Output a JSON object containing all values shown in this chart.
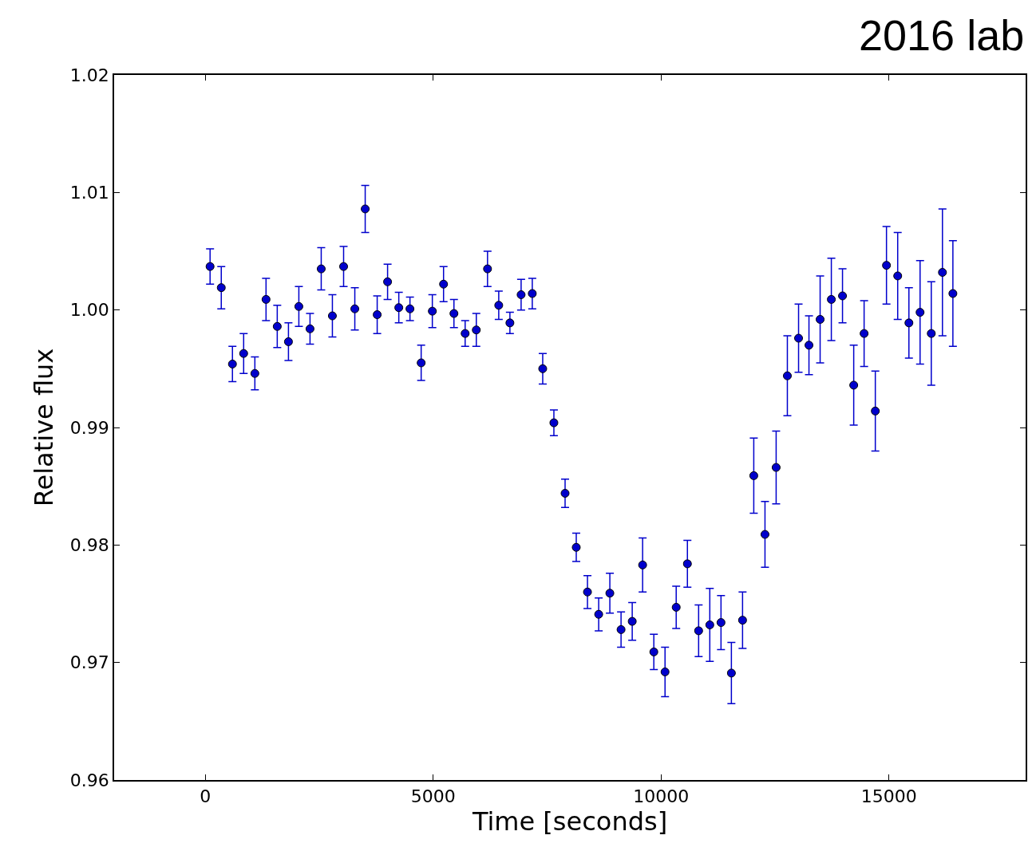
{
  "chart_data": {
    "type": "scatter",
    "xlabel": "Time [seconds]",
    "ylabel": "Relative flux",
    "annotations": [
      "2016 lab"
    ],
    "x": [
      105,
      351,
      596,
      842,
      1088,
      1333,
      1579,
      1825,
      2053,
      2298,
      2544,
      2789,
      3035,
      3281,
      3509,
      3772,
      4000,
      4246,
      4491,
      4737,
      4982,
      5228,
      5456,
      5702,
      5947,
      6193,
      6439,
      6684,
      6930,
      7175,
      7404,
      7649,
      7895,
      8140,
      8386,
      8632,
      8877,
      9123,
      9368,
      9596,
      9842,
      10088,
      10333,
      10579,
      10825,
      11070,
      11316,
      11544,
      11789,
      12035,
      12281,
      12526,
      12772,
      13018,
      13246,
      13491,
      13737,
      13982,
      14228,
      14456,
      14702,
      14947,
      15193,
      15439,
      15684,
      15930,
      16175,
      16404
    ],
    "series": [
      {
        "color": "#0000cc",
        "values": [
          1.0037,
          1.0019,
          0.9954,
          0.9963,
          0.9946,
          1.0009,
          0.9986,
          0.9973,
          1.0003,
          0.9984,
          1.0035,
          0.9995,
          1.0037,
          1.0001,
          1.0086,
          0.9996,
          1.0024,
          1.0002,
          1.0001,
          0.9955,
          0.9999,
          1.0022,
          0.9997,
          0.998,
          0.9983,
          1.0035,
          1.0004,
          0.9989,
          1.0013,
          1.0014,
          0.995,
          0.9904,
          0.9844,
          0.9798,
          0.976,
          0.9741,
          0.9759,
          0.9728,
          0.9735,
          0.9783,
          0.9709,
          0.9692,
          0.9747,
          0.9784,
          0.9727,
          0.9732,
          0.9734,
          0.9691,
          0.9736,
          0.9859,
          0.9809,
          0.9866,
          0.9944,
          0.9976,
          0.997,
          0.9992,
          1.0009,
          1.0012,
          0.9936,
          0.998,
          0.9914,
          1.0038,
          1.0029,
          0.9989,
          0.9998,
          0.998,
          1.0032,
          1.0014
        ],
        "errors": [
          0.0015,
          0.0018,
          0.0015,
          0.0017,
          0.0014,
          0.0018,
          0.0018,
          0.0016,
          0.0017,
          0.0013,
          0.0018,
          0.0018,
          0.0017,
          0.0018,
          0.002,
          0.0016,
          0.0015,
          0.0013,
          0.001,
          0.0015,
          0.0014,
          0.0015,
          0.0012,
          0.0011,
          0.0014,
          0.0015,
          0.0012,
          0.0009,
          0.0013,
          0.0013,
          0.0013,
          0.0011,
          0.0012,
          0.0012,
          0.0014,
          0.0014,
          0.0017,
          0.0015,
          0.0016,
          0.0023,
          0.0015,
          0.0021,
          0.0018,
          0.002,
          0.0022,
          0.0031,
          0.0023,
          0.0026,
          0.0024,
          0.0032,
          0.0028,
          0.0031,
          0.0034,
          0.0029,
          0.0025,
          0.0037,
          0.0035,
          0.0023,
          0.0034,
          0.0028,
          0.0034,
          0.0033,
          0.0037,
          0.003,
          0.0044,
          0.0044,
          0.0054,
          0.0045
        ]
      }
    ],
    "xlim": [
      -2000,
      18000
    ],
    "xticks": [
      0,
      5000,
      10000,
      15000
    ],
    "ylim": [
      0.96,
      1.02
    ],
    "yticks": [
      {
        "value": 0.96,
        "label": "0.96"
      },
      {
        "value": 0.97,
        "label": "0.97"
      },
      {
        "value": 0.98,
        "label": "0.98"
      },
      {
        "value": 0.99,
        "label": "0.99"
      },
      {
        "value": 1.0,
        "label": "1.00"
      },
      {
        "value": 1.01,
        "label": "1.01"
      },
      {
        "value": 1.02,
        "label": "1.02"
      }
    ],
    "marker": "circle"
  }
}
